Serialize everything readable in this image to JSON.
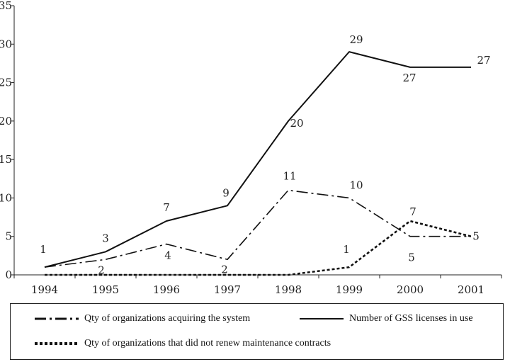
{
  "chart_data": {
    "type": "line",
    "categories": [
      "1994",
      "1995",
      "1996",
      "1997",
      "1998",
      "1999",
      "2000",
      "2001"
    ],
    "ylim": [
      0,
      35
    ],
    "yticks": [
      "0",
      "5",
      "10",
      "15",
      "20",
      "25",
      "30",
      "35"
    ],
    "grid": false,
    "legend_position": "bottom",
    "series": [
      {
        "name": "Qty of organizations acquiring the system",
        "style": "dashdot",
        "color": "#111111",
        "values": [
          1,
          2,
          4,
          2,
          11,
          10,
          5,
          5
        ],
        "labels": [
          "",
          "2",
          "4",
          "2",
          "11",
          "10",
          "5",
          ""
        ]
      },
      {
        "name": "Number of GSS licenses in use",
        "style": "solid",
        "color": "#111111",
        "values": [
          1,
          3,
          7,
          9,
          20,
          29,
          27,
          27
        ],
        "labels": [
          "1",
          "3",
          "7",
          "9",
          "20",
          "29",
          "27",
          "27"
        ]
      },
      {
        "name": "Qty of organizations that did not renew maintenance contracts",
        "style": "dotted",
        "color": "#111111",
        "values": [
          0,
          0,
          0,
          0,
          0,
          1,
          7,
          5
        ],
        "labels": [
          "",
          "",
          "",
          "",
          "",
          "1",
          "7",
          "5"
        ]
      }
    ]
  }
}
